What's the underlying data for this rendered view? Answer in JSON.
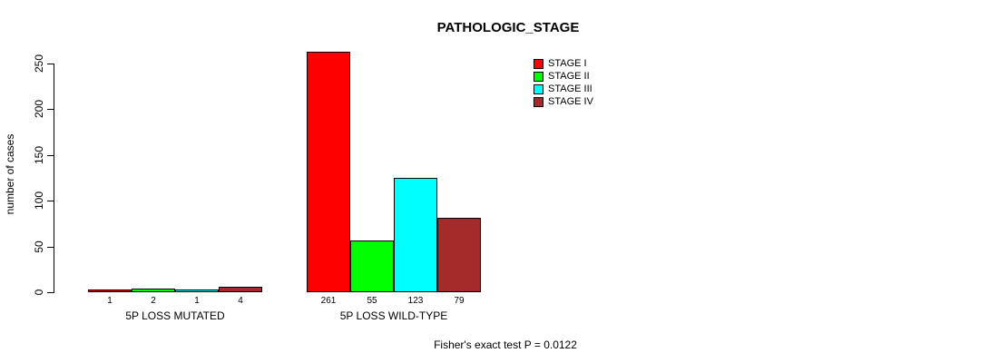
{
  "chart_data": {
    "type": "bar",
    "title": "PATHOLOGIC_STAGE",
    "xlabel": "",
    "ylabel": "number of cases",
    "ylim": [
      0,
      261
    ],
    "yticks": [
      0,
      50,
      100,
      150,
      200,
      250
    ],
    "grid": false,
    "legend_position": "top-right",
    "categories": [
      "5P LOSS MUTATED",
      "5P LOSS WILD-TYPE"
    ],
    "series": [
      {
        "name": "STAGE I",
        "color": "#FF0000",
        "values": [
          1,
          261
        ]
      },
      {
        "name": "STAGE II",
        "color": "#00FF00",
        "values": [
          2,
          55
        ]
      },
      {
        "name": "STAGE III",
        "color": "#00FFFF",
        "values": [
          1,
          123
        ]
      },
      {
        "name": "STAGE IV",
        "color": "#A52A2A",
        "values": [
          4,
          79
        ]
      }
    ],
    "bar_value_labels": [
      [
        1,
        2,
        1,
        4
      ],
      [
        261,
        55,
        123,
        79
      ]
    ],
    "annotation": "Fisher's exact test P = 0.0122"
  }
}
